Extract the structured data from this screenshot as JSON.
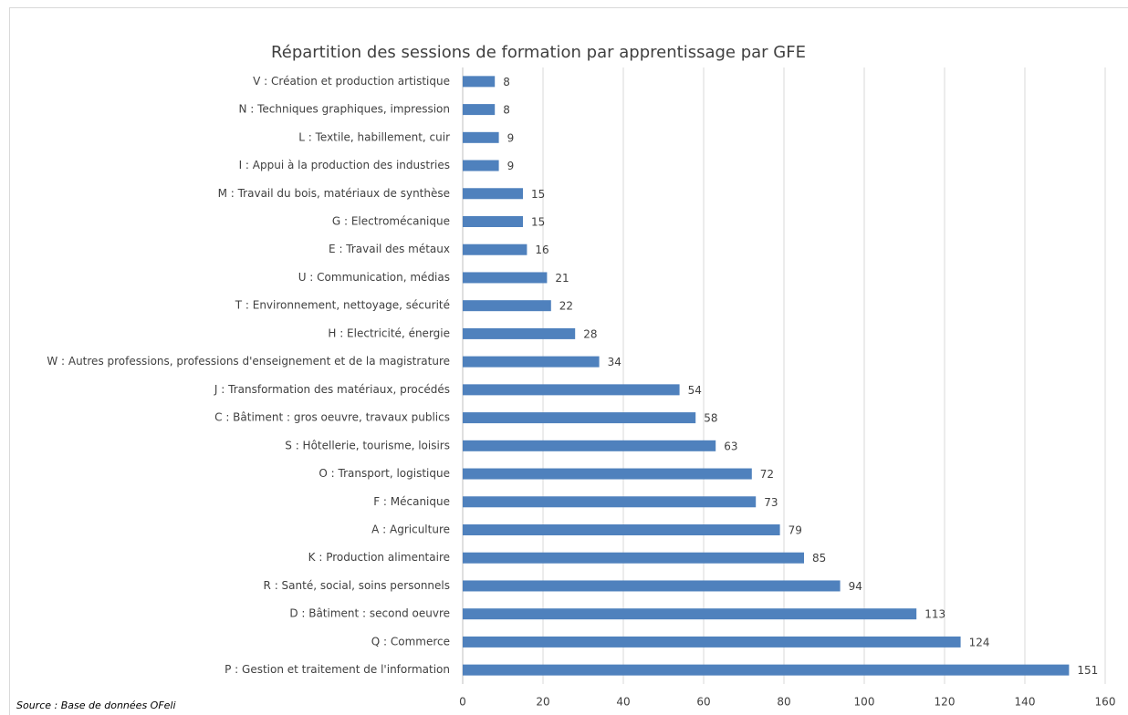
{
  "chart_data": {
    "type": "bar",
    "orientation": "horizontal",
    "title": "Répartition des sessions de formation par apprentissage par GFE",
    "source": "Source : Base de données OFeli",
    "categories": [
      "V : Création et production artistique",
      "N : Techniques graphiques, impression",
      "L : Textile, habillement, cuir",
      "I : Appui à la production des industries",
      "M : Travail du bois, matériaux de synthèse",
      "G : Electromécanique",
      "E : Travail des métaux",
      "U : Communication, médias",
      "T : Environnement, nettoyage, sécurité",
      "H : Electricité, énergie",
      "W : Autres professions, professions d'enseignement et de la magistrature",
      "J : Transformation des matériaux, procédés",
      "C : Bâtiment : gros oeuvre, travaux publics",
      "S : Hôtellerie, tourisme, loisirs",
      "O : Transport, logistique",
      "F : Mécanique",
      "A : Agriculture",
      "K : Production alimentaire",
      "R : Santé, social, soins personnels",
      "D : Bâtiment : second oeuvre",
      "Q : Commerce",
      "P : Gestion et traitement de l'information"
    ],
    "values": [
      8,
      8,
      9,
      9,
      15,
      15,
      16,
      21,
      22,
      28,
      34,
      54,
      58,
      63,
      72,
      73,
      79,
      85,
      94,
      113,
      124,
      151
    ],
    "color": "#4f81bd",
    "xlim": [
      0,
      160
    ],
    "xticks": [
      0,
      20,
      40,
      60,
      80,
      100,
      120,
      140,
      160
    ],
    "grid": true
  }
}
